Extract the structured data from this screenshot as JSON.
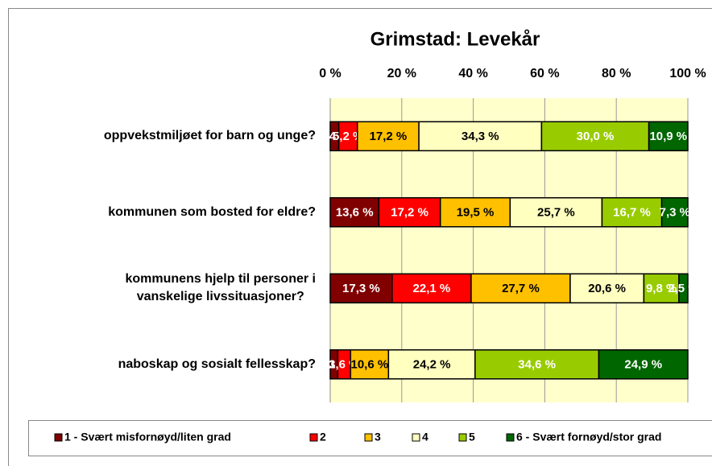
{
  "chart_data": {
    "type": "stacked_barh_percent",
    "title": "Grimstad: Levekår",
    "categories": [
      "oppvekstmiljøet for barn og unge?",
      "kommunen som bosted for eldre?",
      "kommunens hjelp til personer i\nvanskelige livssituasjoner?",
      "naboskap og sosialt fellesskap?"
    ],
    "xlim": [
      0,
      100
    ],
    "xticks": [
      {
        "value": 0,
        "label": "0 %"
      },
      {
        "value": 20,
        "label": "20 %"
      },
      {
        "value": 40,
        "label": "40 %"
      },
      {
        "value": 60,
        "label": "60 %"
      },
      {
        "value": 80,
        "label": "80 %"
      },
      {
        "value": 100,
        "label": "100 %"
      }
    ],
    "grid": true,
    "legend": "bottom",
    "series": [
      {
        "name": "1 - Svært misfornøyd/liten grad",
        "color": "#800000",
        "label_color": "#ffffff",
        "values": [
          2.4,
          13.6,
          17.3,
          2.1
        ],
        "value_labels": [
          "2,4 %",
          "13,6 %",
          "17,3 %",
          "2,1 %"
        ]
      },
      {
        "name": "2",
        "color": "#ff0000",
        "label_color": "#ffffff",
        "values": [
          5.2,
          17.2,
          22.1,
          3.6
        ],
        "value_labels": [
          "5,2 %",
          "17,2 %",
          "22,1 %",
          "3,6 %"
        ]
      },
      {
        "name": "3",
        "color": "#ffc000",
        "label_color": "#000000",
        "values": [
          17.2,
          19.5,
          27.7,
          10.6
        ],
        "value_labels": [
          "17,2 %",
          "19,5 %",
          "27,7 %",
          "10,6 %"
        ]
      },
      {
        "name": "4",
        "color": "#ffffc0",
        "label_color": "#000000",
        "values": [
          34.3,
          25.7,
          20.6,
          24.2
        ],
        "value_labels": [
          "34,3 %",
          "25,7 %",
          "20,6 %",
          "24,2 %"
        ]
      },
      {
        "name": "5",
        "color": "#99cc00",
        "label_color": "#ffffff",
        "values": [
          30.0,
          16.7,
          9.8,
          34.6
        ],
        "value_labels": [
          "30,0 %",
          "16,7 %",
          "9,8 %",
          "34,6 %"
        ]
      },
      {
        "name": "6 - Svært fornøyd/stor grad",
        "color": "#006600",
        "label_color": "#ffffff",
        "values": [
          10.9,
          7.3,
          2.5,
          24.9
        ],
        "value_labels": [
          "10,9 %",
          "7,3 %",
          "2,5 %",
          "24,9 %"
        ]
      }
    ]
  }
}
